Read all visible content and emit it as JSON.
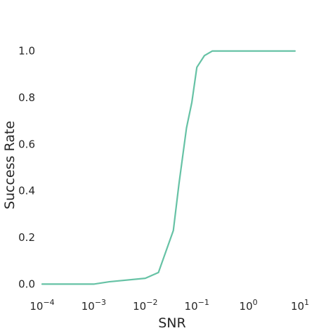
{
  "chart_data": {
    "type": "line",
    "title": "",
    "xlabel": "SNR",
    "ylabel": "Success Rate",
    "xscale": "log",
    "xlim": [
      0.0001,
      10
    ],
    "ylim": [
      -0.05,
      1.05
    ],
    "grid": false,
    "legend": "none",
    "x_ticks": [
      {
        "base": "10",
        "exp": "−4",
        "value": 0.0001
      },
      {
        "base": "10",
        "exp": "−3",
        "value": 0.001
      },
      {
        "base": "10",
        "exp": "−2",
        "value": 0.01
      },
      {
        "base": "10",
        "exp": "−1",
        "value": 0.1
      },
      {
        "base": "10",
        "exp": "0",
        "value": 1
      },
      {
        "base": "10",
        "exp": "1",
        "value": 10
      }
    ],
    "y_ticks": [
      "0.0",
      "0.2",
      "0.4",
      "0.6",
      "0.8",
      "1.0"
    ],
    "series": [
      {
        "color": "#66c2a5",
        "x": [
          0.0001,
          0.001,
          0.002,
          0.01,
          0.018,
          0.035,
          0.045,
          0.063,
          0.08,
          0.1,
          0.14,
          0.2,
          1,
          8
        ],
        "y": [
          0.0,
          0.0,
          0.01,
          0.025,
          0.05,
          0.23,
          0.43,
          0.67,
          0.78,
          0.93,
          0.98,
          1.0,
          1.0,
          1.0
        ]
      }
    ]
  }
}
